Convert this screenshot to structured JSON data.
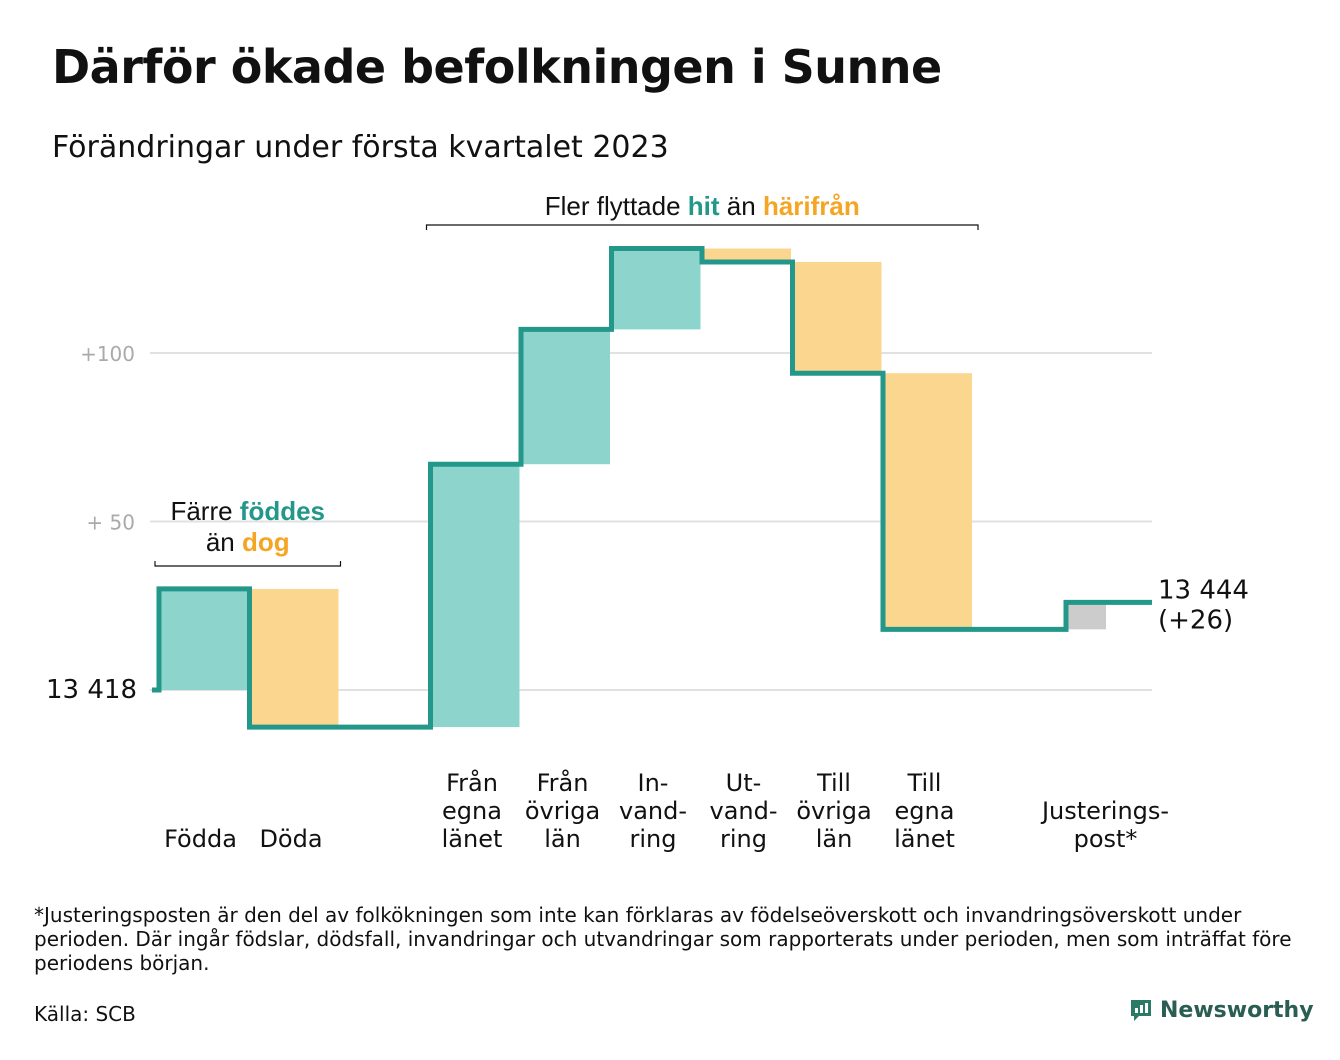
{
  "title": "Därför ökade befolkningen i Sunne",
  "subtitle": "Förändringar under första kvartalet 2023",
  "chart_data": {
    "type": "waterfall",
    "start_value": 13418,
    "start_label": "13 418",
    "end_value": 13444,
    "end_label": "13 444",
    "end_change_label": "(+26)",
    "y_ticks": [
      {
        "value": 100,
        "label": "+100"
      },
      {
        "value": 50,
        "label": "+ 50"
      }
    ],
    "ylim": [
      -15,
      135
    ],
    "steps": [
      {
        "label_lines": [
          "Födda"
        ],
        "change": 30,
        "kind": "in",
        "group": "natural"
      },
      {
        "label_lines": [
          "Döda"
        ],
        "change": -41,
        "kind": "out",
        "group": "natural"
      },
      {
        "label_lines": [],
        "change": 0,
        "kind": "gap",
        "group": "none"
      },
      {
        "label_lines": [
          "Från",
          "egna",
          "länet"
        ],
        "change": 78,
        "kind": "in",
        "group": "migration"
      },
      {
        "label_lines": [
          "Från",
          "övriga",
          "län"
        ],
        "change": 40,
        "kind": "in",
        "group": "migration"
      },
      {
        "label_lines": [
          "In-",
          "vand-",
          "ring"
        ],
        "change": 24,
        "kind": "in",
        "group": "migration"
      },
      {
        "label_lines": [
          "Ut-",
          "vand-",
          "ring"
        ],
        "change": -4,
        "kind": "out",
        "group": "migration"
      },
      {
        "label_lines": [
          "Till",
          "övriga",
          "län"
        ],
        "change": -33,
        "kind": "out",
        "group": "migration"
      },
      {
        "label_lines": [
          "Till",
          "egna",
          "länet"
        ],
        "change": -76,
        "kind": "out",
        "group": "migration"
      },
      {
        "label_lines": [],
        "change": 0,
        "kind": "gap",
        "group": "none"
      },
      {
        "label_lines": [
          "Justerings-",
          "post*"
        ],
        "change": 8,
        "kind": "adjust",
        "group": "adjust"
      }
    ],
    "annotations": {
      "natural": {
        "parts": [
          {
            "text": "Färre ",
            "style": "plain"
          },
          {
            "text": "föddes",
            "style": "teal"
          },
          {
            "text": "\n",
            "style": "break"
          },
          {
            "text": "än ",
            "style": "plain"
          },
          {
            "text": "dog",
            "style": "orange"
          }
        ]
      },
      "migration": {
        "parts": [
          {
            "text": "Fler flyttade ",
            "style": "plain"
          },
          {
            "text": "hit",
            "style": "teal"
          },
          {
            "text": " än ",
            "style": "plain"
          },
          {
            "text": "härifrån",
            "style": "orange"
          }
        ]
      }
    },
    "colors": {
      "in": "#8dd5cc",
      "out": "#fbd68f",
      "adjust": "#cccccc",
      "line": "#22978a",
      "grid": "#e1e1e1",
      "tick_text": "#aaaaaa",
      "teal_text": "#22978a",
      "orange_text": "#f5a524"
    }
  },
  "footnote": "*Justeringsposten är den del av folkökningen som inte kan förklaras av födelseöverskott och invandringsöverskott under perioden. Där ingår födslar, dödsfall, invandringar och utvandringar som rapporterats under perioden, men som inträffat före periodens början.",
  "source": "Källa: SCB",
  "brand": "Newsworthy"
}
